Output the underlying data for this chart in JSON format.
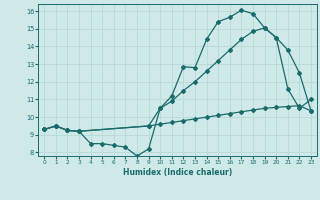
{
  "xlabel": "Humidex (Indice chaleur)",
  "bg_color": "#cfe8e8",
  "grid_color": "#b8d8d8",
  "line_color": "#1a6b6b",
  "xlim": [
    -0.5,
    23.5
  ],
  "ylim": [
    7.8,
    16.4
  ],
  "yticks": [
    8,
    9,
    10,
    11,
    12,
    13,
    14,
    15,
    16
  ],
  "xticks": [
    0,
    1,
    2,
    3,
    4,
    5,
    6,
    7,
    8,
    9,
    10,
    11,
    12,
    13,
    14,
    15,
    16,
    17,
    18,
    19,
    20,
    21,
    22,
    23
  ],
  "curve1_x": [
    0,
    1,
    2,
    3,
    4,
    5,
    6,
    7,
    8,
    9,
    10,
    11,
    12,
    13,
    14,
    15,
    16,
    17,
    18,
    19,
    20,
    21,
    22,
    23
  ],
  "curve1_y": [
    9.3,
    9.5,
    9.25,
    9.2,
    8.5,
    8.5,
    8.4,
    8.3,
    7.8,
    8.2,
    10.5,
    11.2,
    12.85,
    12.8,
    14.4,
    15.4,
    15.65,
    16.05,
    15.85,
    15.05,
    14.5,
    11.6,
    10.5,
    11.0
  ],
  "curve2_x": [
    0,
    1,
    2,
    3,
    9,
    10,
    11,
    12,
    13,
    14,
    15,
    16,
    17,
    18,
    19,
    20,
    21,
    22,
    23
  ],
  "curve2_y": [
    9.3,
    9.5,
    9.25,
    9.2,
    9.5,
    10.5,
    10.9,
    11.5,
    12.0,
    12.6,
    13.2,
    13.8,
    14.4,
    14.85,
    15.05,
    14.5,
    13.8,
    12.5,
    10.35
  ],
  "curve3_x": [
    0,
    1,
    2,
    3,
    9,
    10,
    11,
    12,
    13,
    14,
    15,
    16,
    17,
    18,
    19,
    20,
    21,
    22,
    23
  ],
  "curve3_y": [
    9.3,
    9.5,
    9.25,
    9.2,
    9.5,
    9.6,
    9.7,
    9.8,
    9.9,
    10.0,
    10.1,
    10.2,
    10.3,
    10.4,
    10.5,
    10.55,
    10.6,
    10.65,
    10.35
  ],
  "marker": "D",
  "markersize": 2.0,
  "linewidth": 0.9
}
